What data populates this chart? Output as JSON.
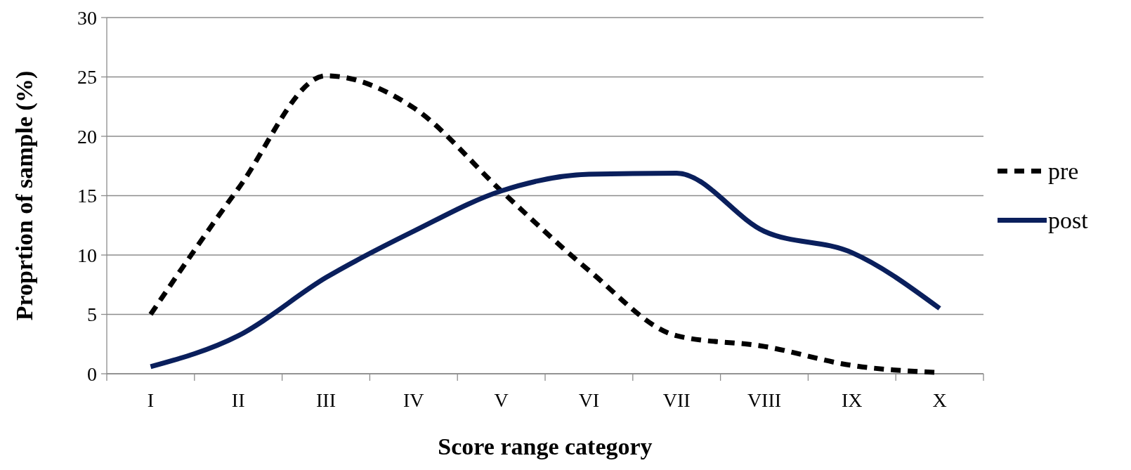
{
  "chart_data": {
    "type": "line",
    "xlabel": "Score range category",
    "ylabel": "Proprtion of sample (%)",
    "categories": [
      "I",
      "II",
      "III",
      "IV",
      "V",
      "VI",
      "VII",
      "VIII",
      "IX",
      "X"
    ],
    "series": [
      {
        "name": "pre",
        "color": "#000000",
        "line_style": "dashed",
        "values": [
          5,
          15.6,
          25.1,
          22.4,
          15.4,
          8.7,
          3.2,
          2.3,
          0.7,
          0.1
        ]
      },
      {
        "name": "post",
        "color": "#0a1f5c",
        "line_style": "solid",
        "values": [
          0.6,
          3.2,
          8.1,
          12,
          15.4,
          16.8,
          16.9,
          12,
          10.2,
          5.5
        ]
      }
    ],
    "ylim": [
      0,
      30
    ],
    "yticks": [
      0,
      5,
      10,
      15,
      20,
      25,
      30
    ],
    "grid": "y",
    "legend": "right"
  }
}
